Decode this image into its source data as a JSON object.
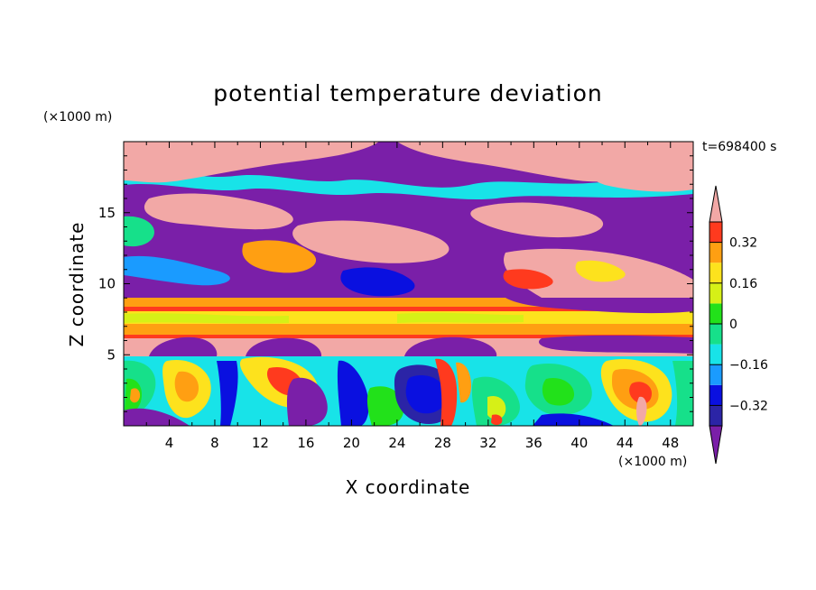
{
  "chart_data": {
    "type": "heatmap",
    "title": "potential temperature deviation",
    "xlabel": "X coordinate",
    "ylabel": "Z coordinate",
    "x_unit": "(×1000 m)",
    "y_unit": "(×1000 m)",
    "time_label": "t=698400 s",
    "xlim": [
      0,
      50
    ],
    "ylim": [
      0,
      20
    ],
    "x_ticks": [
      4,
      8,
      12,
      16,
      20,
      24,
      28,
      32,
      36,
      40,
      44,
      48
    ],
    "y_ticks": [
      5,
      10,
      15
    ],
    "colorbar": {
      "levels": [
        -0.4,
        -0.32,
        -0.24,
        -0.16,
        -0.08,
        0,
        0.08,
        0.16,
        0.24,
        0.32,
        0.4
      ],
      "tick_labels": [
        "0.32",
        "0.16",
        "0",
        "−0.16",
        "−0.32"
      ],
      "tick_values": [
        0.32,
        0.16,
        0,
        -0.16,
        -0.32
      ],
      "colors": [
        "#7a1fa8",
        "#2b24a6",
        "#0a10e0",
        "#1a9bff",
        "#18e3e8",
        "#16e08a",
        "#22e11a",
        "#d6f017",
        "#fde21d",
        "#ff9f12",
        "#ff3a1e",
        "#f2a8a6"
      ],
      "extend": "both"
    }
  }
}
